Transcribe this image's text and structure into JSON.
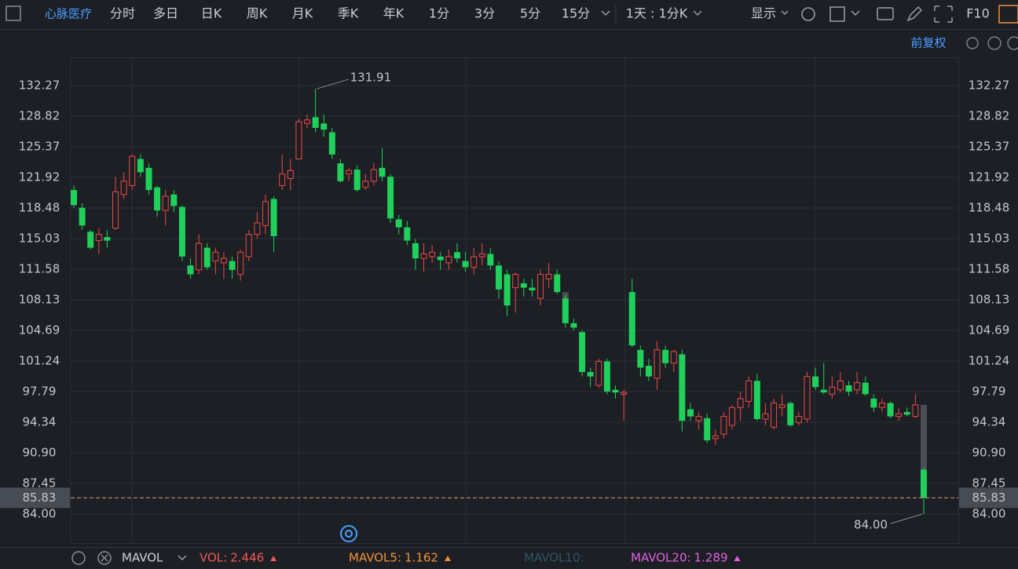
{
  "toolbar": {
    "stock": "心脉医疗",
    "periods": [
      "分时",
      "多日",
      "日K",
      "周K",
      "月K",
      "季K",
      "年K",
      "1分",
      "3分",
      "5分",
      "15分"
    ],
    "active_period": 2,
    "intraday": "1天 : 1分K",
    "display": "显示",
    "f10": "F10",
    "adjust": "前复权"
  },
  "indicator_bar": {
    "name": "MAVOL",
    "items": [
      {
        "label": "VOL:",
        "value": 2.446,
        "color": "#f25757"
      },
      {
        "label": "MAVOL5:",
        "value": 1.162,
        "color": "#f0913a"
      },
      {
        "label": "MAVOL10:",
        "color": "#2f5668"
      },
      {
        "label": "MAVOL20:",
        "value": 1.289,
        "color": "#e55ee5"
      }
    ]
  },
  "chart_data": {
    "type": "candlestick",
    "up_color": "#f04848",
    "down_color": "#1fd15a",
    "open": [
      120.5,
      118.5,
      115.8,
      114.8,
      115.2,
      116.2,
      120.0,
      121.0,
      124.0,
      123.0,
      120.8,
      118.2,
      120.0,
      118.6,
      112.0,
      111.5,
      114.0,
      112.5,
      112.3,
      112.5,
      111.0,
      113.0,
      115.5,
      116.5,
      119.5,
      121.0,
      121.8,
      124.0,
      128.0,
      128.7,
      128.0,
      127.0,
      123.5,
      122.3,
      122.8,
      120.8,
      121.5,
      123.0,
      122.0,
      117.2,
      116.3,
      114.5,
      112.8,
      113.0,
      113.0,
      112.3,
      113.5,
      112.5,
      111.8,
      113.0,
      113.3,
      112.0,
      111.0,
      109.5,
      110.0,
      109.5,
      108.3,
      110.5,
      111.0,
      108.3,
      105.5,
      104.5,
      100.0,
      98.5,
      101.2,
      98.0,
      97.5,
      109.0,
      102.5,
      100.7,
      99.3,
      102.5,
      101.0,
      102.0,
      95.8,
      94.5,
      94.8,
      92.5,
      93.0,
      94.0,
      96.0,
      96.7,
      99.0,
      94.7,
      93.8,
      96.0,
      96.5,
      94.3,
      94.7,
      99.5,
      98.0,
      97.5,
      98.0,
      98.5,
      98.0,
      98.8,
      97.0,
      96.0,
      96.5,
      95.0,
      95.5,
      95.0,
      89.0
    ],
    "high": [
      121,
      119,
      116,
      116.2,
      116,
      122,
      122.5,
      124.5,
      124.5,
      123.5,
      121,
      120.5,
      120.5,
      118.8,
      112.8,
      115.5,
      114.5,
      114,
      113.5,
      113,
      113.8,
      116,
      118,
      120,
      119.8,
      124.5,
      124,
      128.5,
      129,
      131.91,
      129,
      127.5,
      124,
      123,
      123.3,
      122.3,
      123.5,
      125.2,
      122.3,
      117.7,
      117,
      115,
      114.5,
      114.3,
      113.5,
      113.8,
      114.5,
      113.5,
      114,
      114.5,
      114,
      112.5,
      111.5,
      111.2,
      110.5,
      110.5,
      111.5,
      112.3,
      111.5,
      108.7,
      106,
      104.7,
      100.5,
      101.5,
      101.5,
      98.5,
      98,
      110.5,
      103,
      101.5,
      103.5,
      103,
      102.5,
      102.5,
      96.5,
      95.5,
      95.3,
      93.5,
      95.5,
      96.3,
      97.8,
      99.5,
      99.8,
      96.5,
      97,
      97.5,
      96.7,
      95.5,
      100,
      100.5,
      101,
      99.5,
      100,
      99,
      100,
      99.5,
      97.5,
      97,
      96.7,
      96,
      96,
      97.5,
      89.2
    ],
    "low": [
      118.5,
      116,
      113.8,
      113.3,
      114,
      116,
      119.5,
      120.5,
      122,
      120,
      117.5,
      116.5,
      118,
      112.5,
      110.5,
      111,
      111.5,
      111,
      110.5,
      110.5,
      110.3,
      112.5,
      115,
      115.5,
      113.5,
      120.5,
      120.5,
      124,
      127.5,
      127,
      126.5,
      124,
      121.3,
      121.5,
      120.3,
      120.5,
      121,
      121.5,
      116.8,
      115.5,
      114.3,
      111.5,
      111.3,
      112.3,
      111.5,
      111.5,
      112.3,
      111.3,
      111,
      112,
      111.5,
      108.3,
      106.3,
      106.7,
      108.5,
      108.5,
      107.5,
      109.5,
      108.8,
      105,
      104.7,
      99.5,
      98.3,
      98.2,
      97.5,
      97,
      94.5,
      102.8,
      99.5,
      99,
      98,
      100.5,
      100,
      93.3,
      94.5,
      93.5,
      92,
      91.8,
      92.5,
      93.5,
      94.5,
      96,
      94.5,
      94,
      93.5,
      95,
      93.8,
      94,
      94.3,
      98,
      97.5,
      97,
      97.7,
      97.3,
      97.5,
      97.3,
      95.5,
      95.5,
      94.8,
      94.5,
      95,
      94.8,
      84
    ],
    "close": [
      118.8,
      116.5,
      114.0,
      115.5,
      114.8,
      120.3,
      121.5,
      124.3,
      122.5,
      120.5,
      118.2,
      119.8,
      118.7,
      113.0,
      111.0,
      114.5,
      111.8,
      113.5,
      112.8,
      111.5,
      113.5,
      115.5,
      116.8,
      119.2,
      115.3,
      122.3,
      122.7,
      128.2,
      128.4,
      127.5,
      127.3,
      124.5,
      121.5,
      122.7,
      120.5,
      121.5,
      122.8,
      122.0,
      117.3,
      116.3,
      114.8,
      112.8,
      113.3,
      113.5,
      112.6,
      113.0,
      112.8,
      111.8,
      113.0,
      113.3,
      112.0,
      109.3,
      107.5,
      111.0,
      109.5,
      109.2,
      111.0,
      111.0,
      109.0,
      105.5,
      105.0,
      100.0,
      99.5,
      101.2,
      97.8,
      97.7,
      97.7,
      103.0,
      100.5,
      99.5,
      102.5,
      101.0,
      102.3,
      94.5,
      95.0,
      95.0,
      92.3,
      92.8,
      95.0,
      96.0,
      97.0,
      99.0,
      94.7,
      95.3,
      96.5,
      96.3,
      94.0,
      95.0,
      99.5,
      98.3,
      97.7,
      98.3,
      99.0,
      97.8,
      98.8,
      97.5,
      96.0,
      96.5,
      95.0,
      95.3,
      95.2,
      96.3,
      85.83
    ],
    "ylim": [
      80.73,
      135.45
    ],
    "yticks": [
      {
        "value": 84,
        "label": "84.00"
      },
      87.45,
      {
        "value": 90.9,
        "label": "90.90"
      },
      94.34,
      97.79,
      101.24,
      104.69,
      108.13,
      111.58,
      115.03,
      118.48,
      121.92,
      125.37,
      128.82,
      132.27
    ],
    "grid": true,
    "max_marker": 131.91,
    "min_marker": {
      "value": 84,
      "label": "84.00"
    },
    "last_price": 85.83
  }
}
